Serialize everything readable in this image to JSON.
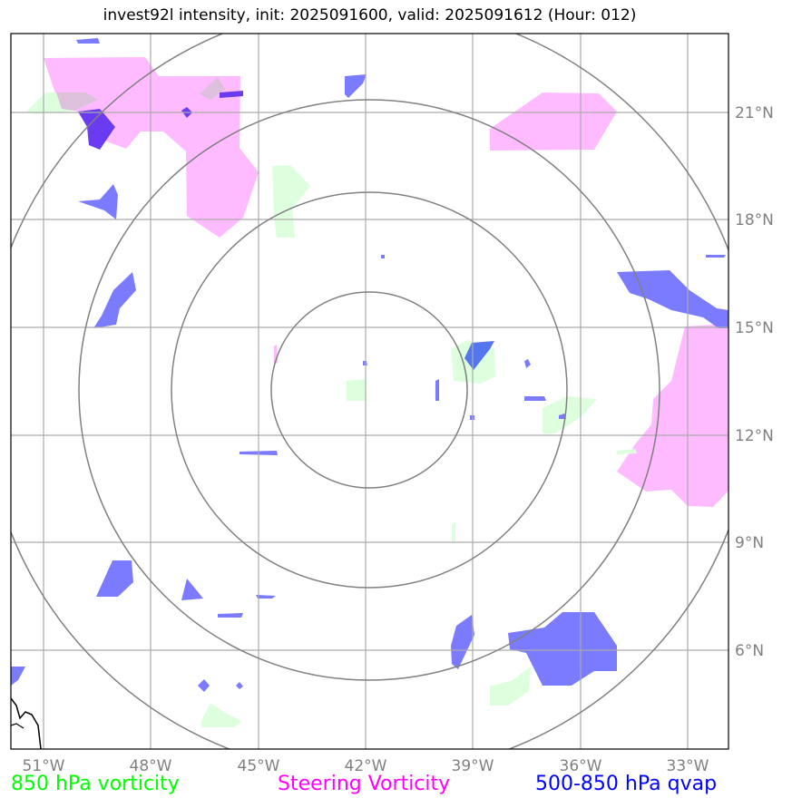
{
  "title": "invest92l intensity, init: 2025091600, valid: 2025091612 (Hour: 012)",
  "map": {
    "lon_ticks": [
      "51°W",
      "48°W",
      "45°W",
      "42°W",
      "39°W",
      "36°W",
      "33°W"
    ],
    "lat_ticks": [
      "21°N",
      "18°N",
      "15°N",
      "12°N",
      "9°N",
      "6°N"
    ],
    "range_rings": 4,
    "center": {
      "lon": "42°W",
      "lat": "13.2°N"
    }
  },
  "legend": {
    "vort850": {
      "label": "850 hPa vorticity",
      "color": "#00ff00"
    },
    "steering": {
      "label": "Steering Vorticity",
      "color": "#ff00ff"
    },
    "qvap": {
      "label": "500-850 hPa qvap",
      "color": "#0000ff"
    }
  },
  "colors": {
    "vort_fill": "#ddffdd",
    "steer_fill": "#ffbbff",
    "qvap_fill": "#7b7bff",
    "grid": "#aaaaaa",
    "rings": "#808080",
    "coast": "#000000"
  }
}
